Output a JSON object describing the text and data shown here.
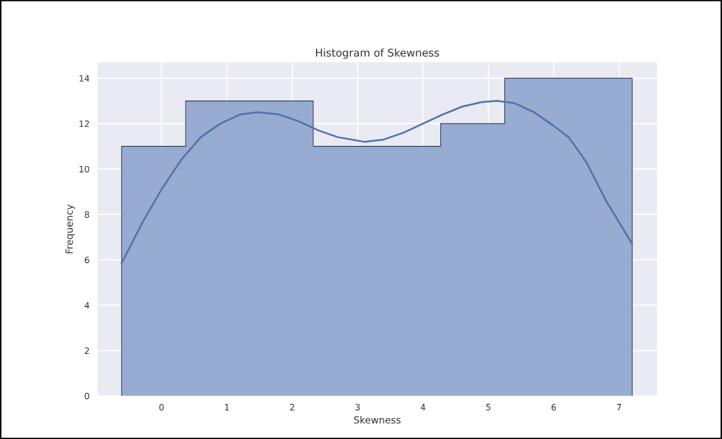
{
  "chart_data": {
    "type": "histogram",
    "title": "Histogram of Skewness",
    "xlabel": "Skewness",
    "ylabel": "Frequency",
    "bins": [
      -0.61,
      0.37,
      1.34,
      2.32,
      3.29,
      4.27,
      5.25,
      6.22,
      7.2
    ],
    "values": [
      11,
      13,
      13,
      11,
      11,
      12,
      14,
      14
    ],
    "color": "#98abd0",
    "series": [
      {
        "type": "line",
        "color": "#4c72b0",
        "x": [
          -0.61,
          -0.3,
          0,
          0.3,
          0.6,
          0.9,
          1.2,
          1.47,
          1.8,
          2.1,
          2.4,
          2.7,
          3.1,
          3.4,
          3.7,
          4.0,
          4.3,
          4.6,
          4.9,
          5.13,
          5.4,
          5.7,
          6.0,
          6.23,
          6.5,
          6.8,
          7.2
        ],
        "values": [
          5.85,
          7.6,
          9.1,
          10.4,
          11.4,
          12.0,
          12.4,
          12.5,
          12.4,
          12.1,
          11.7,
          11.4,
          11.2,
          11.3,
          11.6,
          12.0,
          12.4,
          12.75,
          12.95,
          13.0,
          12.9,
          12.5,
          11.9,
          11.4,
          10.3,
          8.6,
          6.7
        ]
      }
    ],
    "xlim": [
      -0.98,
      7.58
    ],
    "ylim": [
      0,
      14.7
    ],
    "xticks": [
      0,
      1,
      2,
      3,
      4,
      5,
      6,
      7
    ],
    "yticks": [
      0,
      2,
      4,
      6,
      8,
      10,
      12,
      14
    ],
    "grid": true
  }
}
